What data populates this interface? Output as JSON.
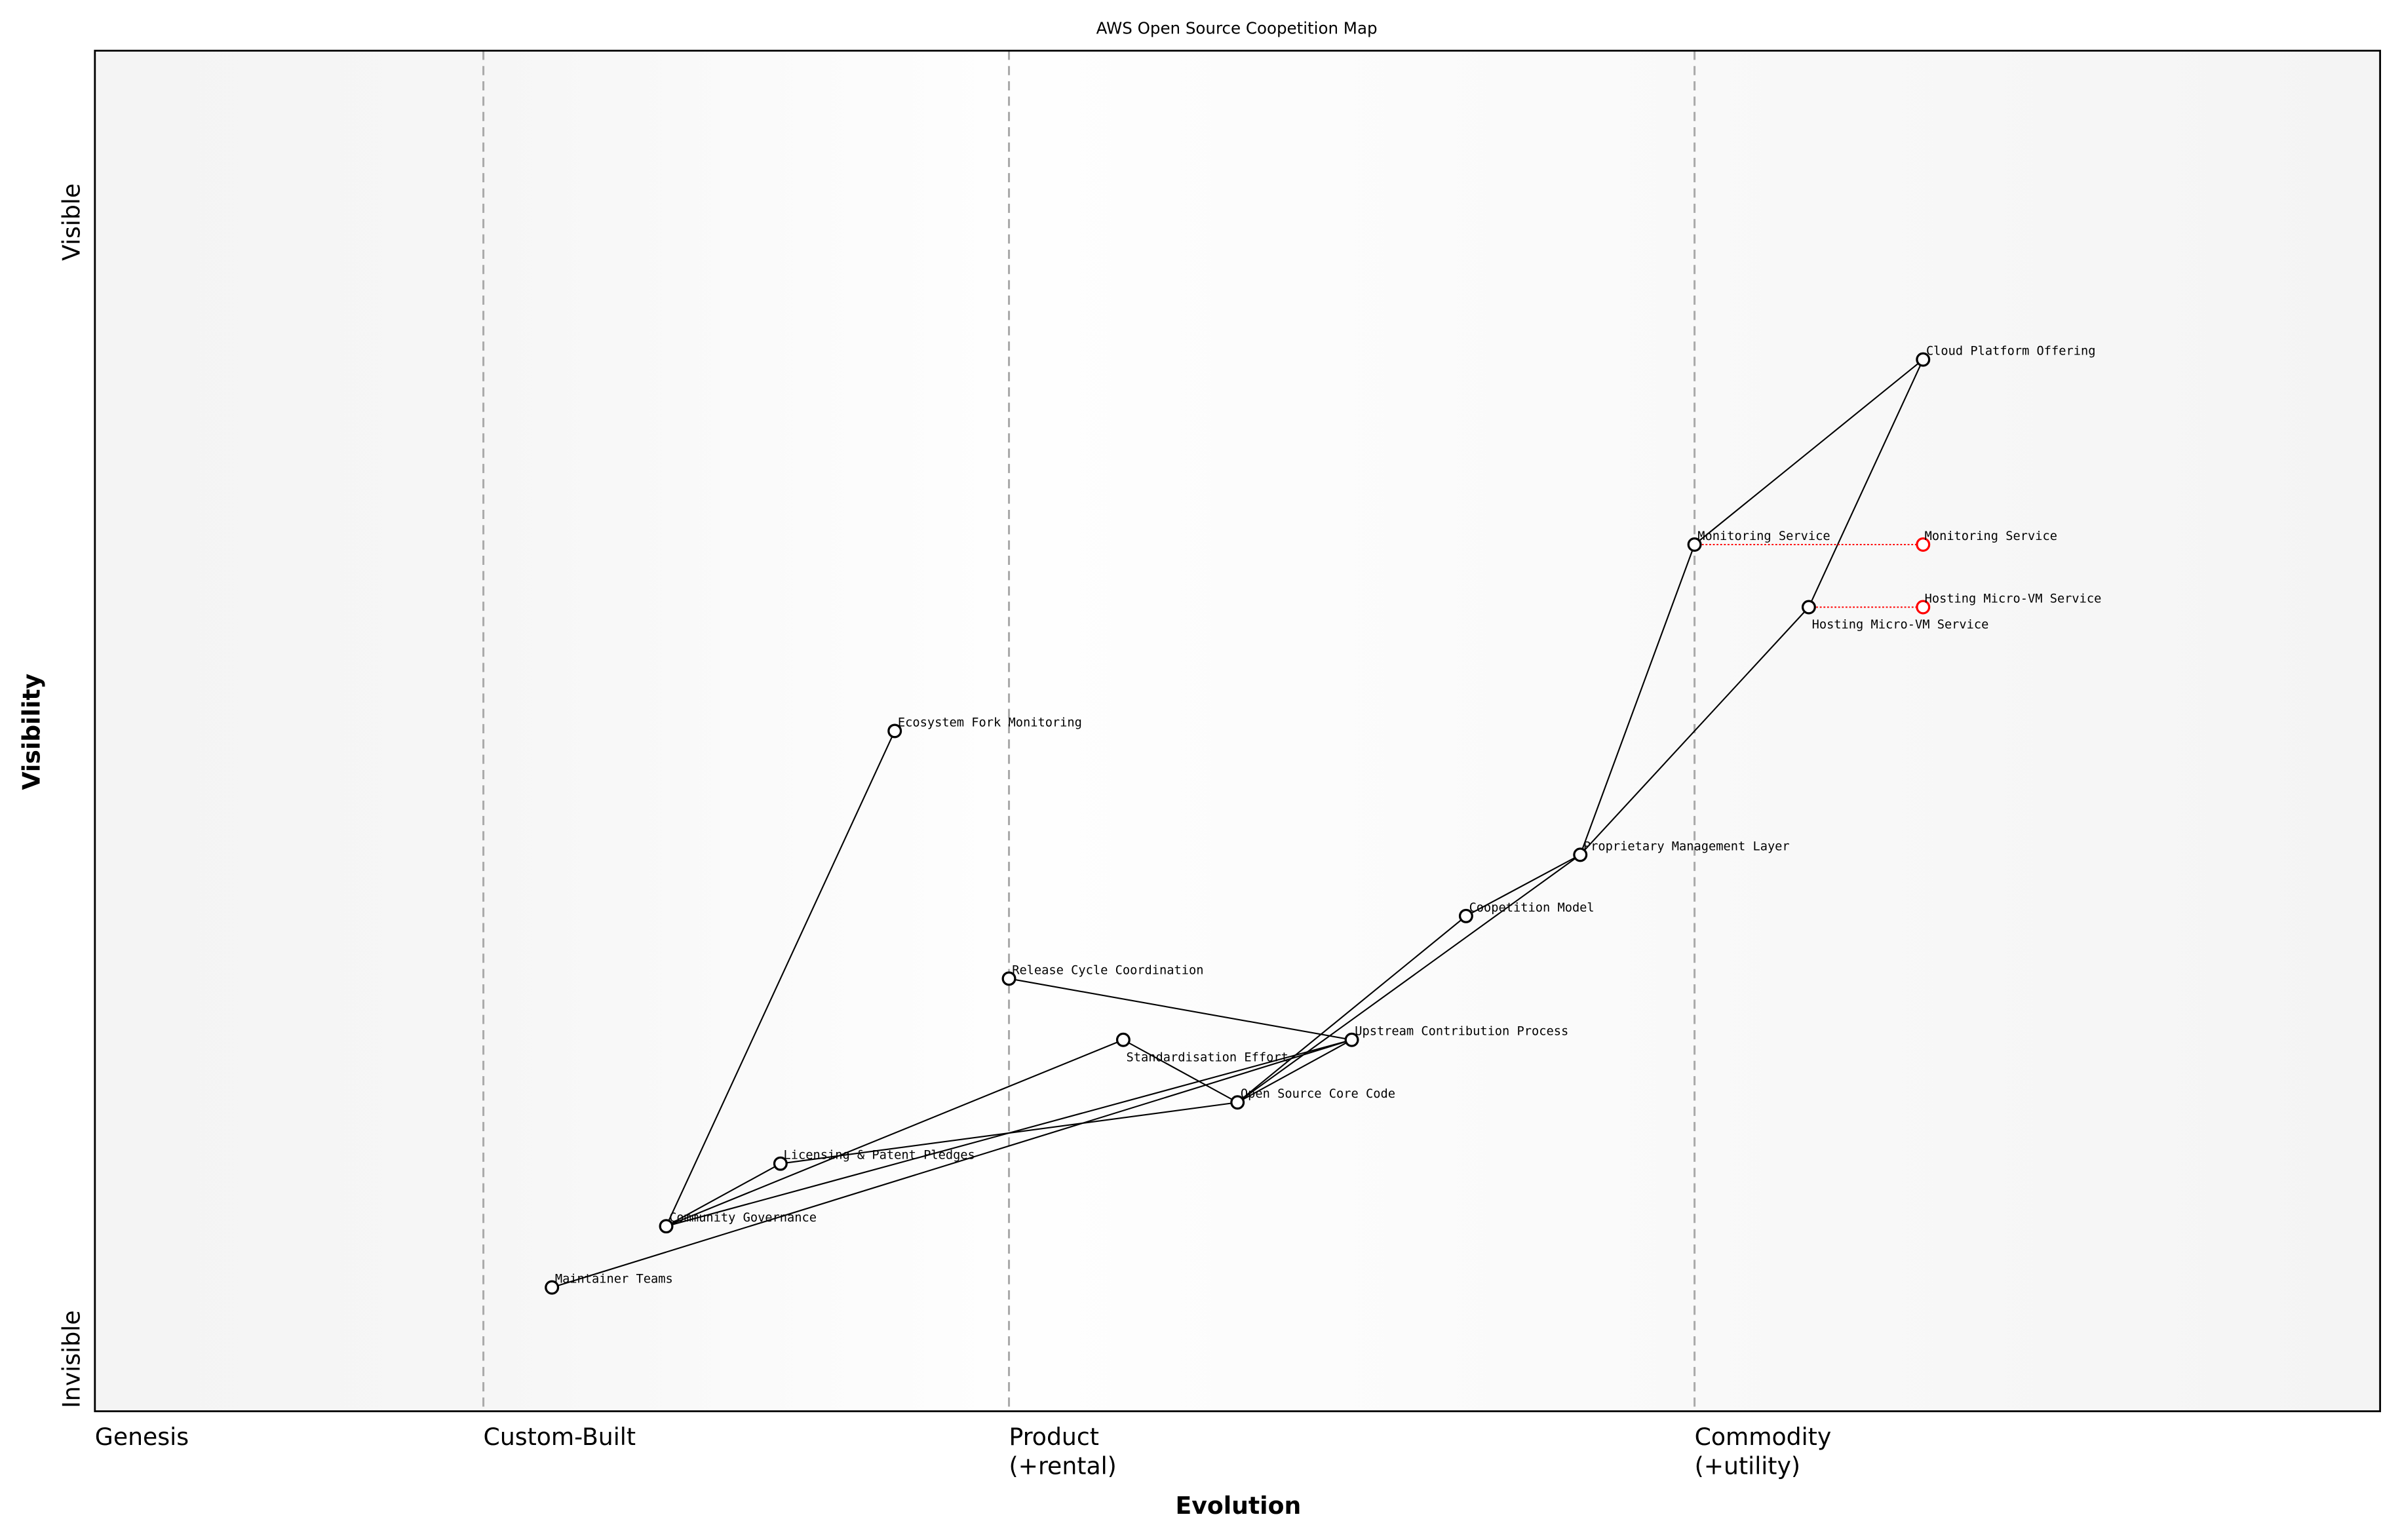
{
  "title": "AWS Open Source Coopetition Map",
  "x_axis": {
    "label": "Evolution",
    "stages": [
      {
        "name": "Genesis",
        "line1": "Genesis",
        "line2": "",
        "at": 0
      },
      {
        "name": "Custom-Built",
        "line1": "Custom-Built",
        "line2": "",
        "at": 0.17
      },
      {
        "name": "Product",
        "line1": "Product",
        "line2": "(+rental)",
        "at": 0.4
      },
      {
        "name": "Commodity",
        "line1": "Commodity",
        "line2": "(+utility)",
        "at": 0.7
      }
    ]
  },
  "y_axis": {
    "label": "Visibility",
    "top": "Visible",
    "bottom": "Invisible"
  },
  "colors": {
    "node": "#000000",
    "evolved": "#ff0000",
    "divider": "#aaaaaa"
  },
  "chart_data": {
    "type": "wardley-map",
    "xlim": [
      0,
      1
    ],
    "ylim": [
      0,
      1
    ],
    "components": [
      {
        "id": "cloud",
        "name": "Cloud Platform Offering",
        "evolution": 0.8,
        "visibility": 0.773
      },
      {
        "id": "monitor",
        "name": "Monitoring Service",
        "evolution": 0.7,
        "visibility": 0.637
      },
      {
        "id": "hosting",
        "name": "Hosting Micro-VM Service",
        "evolution": 0.75,
        "visibility": 0.591
      },
      {
        "id": "ecosystem",
        "name": "Ecosystem Fork Monitoring",
        "evolution": 0.35,
        "visibility": 0.5
      },
      {
        "id": "proprietary",
        "name": "Proprietary Management Layer",
        "evolution": 0.65,
        "visibility": 0.409
      },
      {
        "id": "coop",
        "name": "Coopetition Model",
        "evolution": 0.6,
        "visibility": 0.364
      },
      {
        "id": "release",
        "name": "Release Cycle Coordination",
        "evolution": 0.4,
        "visibility": 0.318
      },
      {
        "id": "standard",
        "name": "Standardisation Effort",
        "evolution": 0.45,
        "visibility": 0.273
      },
      {
        "id": "upstream",
        "name": "Upstream Contribution Process",
        "evolution": 0.55,
        "visibility": 0.273
      },
      {
        "id": "oscore",
        "name": "Open Source Core Code",
        "evolution": 0.5,
        "visibility": 0.227
      },
      {
        "id": "licensing",
        "name": "Licensing & Patent Pledges",
        "evolution": 0.3,
        "visibility": 0.182
      },
      {
        "id": "community",
        "name": "Community Governance",
        "evolution": 0.25,
        "visibility": 0.136
      },
      {
        "id": "maintainer",
        "name": "Maintainer Teams",
        "evolution": 0.2,
        "visibility": 0.091
      }
    ],
    "evolved": [
      {
        "from": "monitor",
        "name": "Monitoring Service",
        "evolution": 0.8
      },
      {
        "from": "hosting",
        "name": "Hosting Micro-VM Service",
        "evolution": 0.8
      }
    ],
    "links": [
      [
        "cloud",
        "monitor"
      ],
      [
        "cloud",
        "hosting"
      ],
      [
        "monitor",
        "proprietary"
      ],
      [
        "hosting",
        "proprietary"
      ],
      [
        "proprietary",
        "coop"
      ],
      [
        "proprietary",
        "oscore"
      ],
      [
        "coop",
        "oscore"
      ],
      [
        "upstream",
        "oscore"
      ],
      [
        "release",
        "upstream"
      ],
      [
        "upstream",
        "community"
      ],
      [
        "upstream",
        "maintainer"
      ],
      [
        "standard",
        "community"
      ],
      [
        "standard",
        "oscore"
      ],
      [
        "licensing",
        "community"
      ],
      [
        "licensing",
        "oscore"
      ],
      [
        "ecosystem",
        "community"
      ]
    ]
  }
}
